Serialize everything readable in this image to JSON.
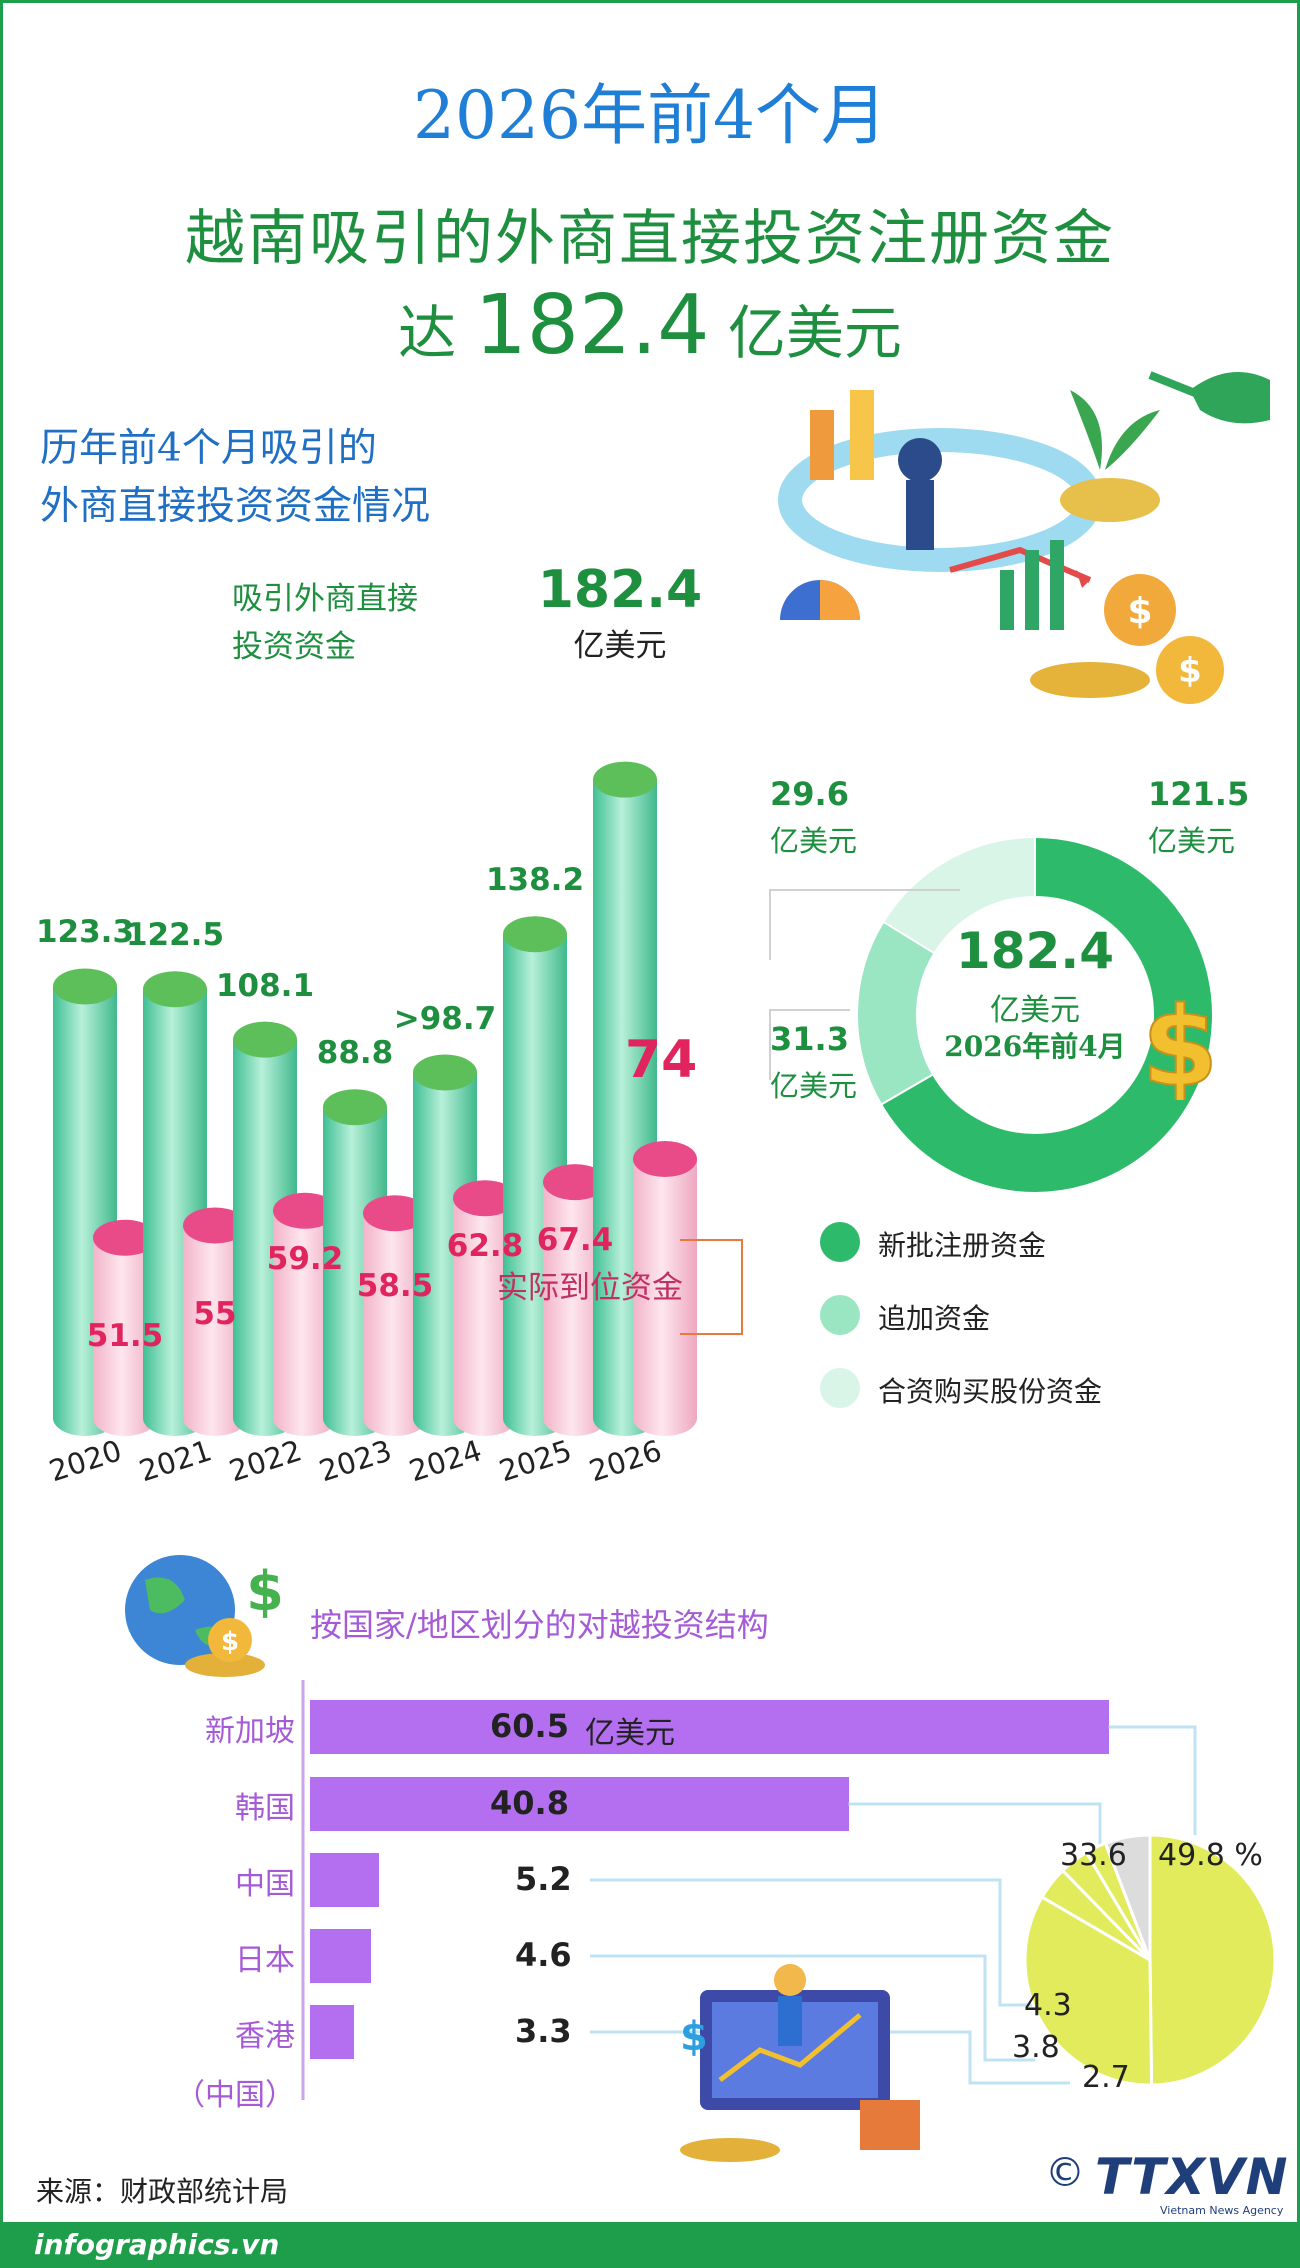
{
  "header": {
    "line1": "2026年前4个月",
    "line2": "越南吸引的外商直接投资注册资金",
    "line3_pre": "达",
    "line3_value": "182.4",
    "line3_unit": "亿美元"
  },
  "fdi_section": {
    "title_line1": "历年前4个月吸引的",
    "title_line2": "外商直接投资资金情况",
    "series_label_line1": "吸引外商直接",
    "series_label_line2": "投资资金",
    "peak_value": "182.4",
    "peak_unit": "亿美元",
    "actual_label": "实际到位资金",
    "actual_2026_label": "74"
  },
  "colors": {
    "green_dark": "#1d8f3f",
    "green_cyl": "#5fd1ad",
    "pink_cyl": "#f7c6d7",
    "pink_top": "#e94b89",
    "red_text": "#e0245e",
    "blue_title": "#1f7fd6",
    "purple": "#b36ff0",
    "lime": "#e2eb5b"
  },
  "chart_data": [
    {
      "type": "bar",
      "categories": [
        "2020",
        "2021",
        "2022",
        "2023",
        "2024",
        "2025",
        "2026"
      ],
      "series": [
        {
          "name": "吸引外商直接投资资金",
          "values": [
            123.3,
            122.5,
            108.1,
            88.8,
            98.7,
            138.2,
            182.4
          ],
          "labels": [
            "123.3",
            "122.5",
            "108.1",
            "88.8",
            ">98.7",
            "138.2",
            "182.4"
          ]
        },
        {
          "name": "实际到位资金",
          "values": [
            51.5,
            55,
            59.2,
            58.5,
            62.8,
            67.4,
            74
          ],
          "labels": [
            "51.5",
            "55",
            "59.2",
            "58.5",
            "62.8",
            "67.4",
            "74"
          ]
        }
      ]
    },
    {
      "type": "pie",
      "center_value": "182.4",
      "center_unit": "亿美元",
      "center_caption": "2026年前4月",
      "slices": [
        {
          "name": "新批注册资金",
          "value": 121.5,
          "unit": "亿美元",
          "color": "#2dbb6b"
        },
        {
          "name": "追加资金",
          "value": 31.3,
          "unit": "亿美元",
          "color": "#9ae6c2"
        },
        {
          "name": "合资购买股份资金",
          "value": 29.6,
          "unit": "亿美元",
          "color": "#d9f5e7"
        }
      ]
    },
    {
      "type": "bar",
      "title": "按国家/地区划分的对越投资结构",
      "categories": [
        "新加坡",
        "韩国",
        "中国",
        "日本",
        "香港"
      ],
      "category_note": "（中国）",
      "values": [
        60.5,
        40.8,
        5.2,
        4.6,
        3.3
      ],
      "unit": "亿美元"
    },
    {
      "type": "pie",
      "slices": [
        {
          "label": "49.8 %",
          "value": 49.8,
          "color": "#e2eb5b"
        },
        {
          "label": "33.6",
          "value": 33.6,
          "color": "#e2eb5b"
        },
        {
          "label": "4.3",
          "value": 4.3,
          "color": "#e2eb5b"
        },
        {
          "label": "3.8",
          "value": 3.8,
          "color": "#e2eb5b"
        },
        {
          "label": "2.7",
          "value": 2.7,
          "color": "#e2eb5b"
        },
        {
          "value": 5.8,
          "color": "#dcdcdc"
        }
      ]
    }
  ],
  "footer": {
    "source": "来源：财政部统计局",
    "site": "infographics.vn",
    "copyright": "©",
    "agency": "TTXVN",
    "agency_sub": "Vietnam News Agency"
  }
}
